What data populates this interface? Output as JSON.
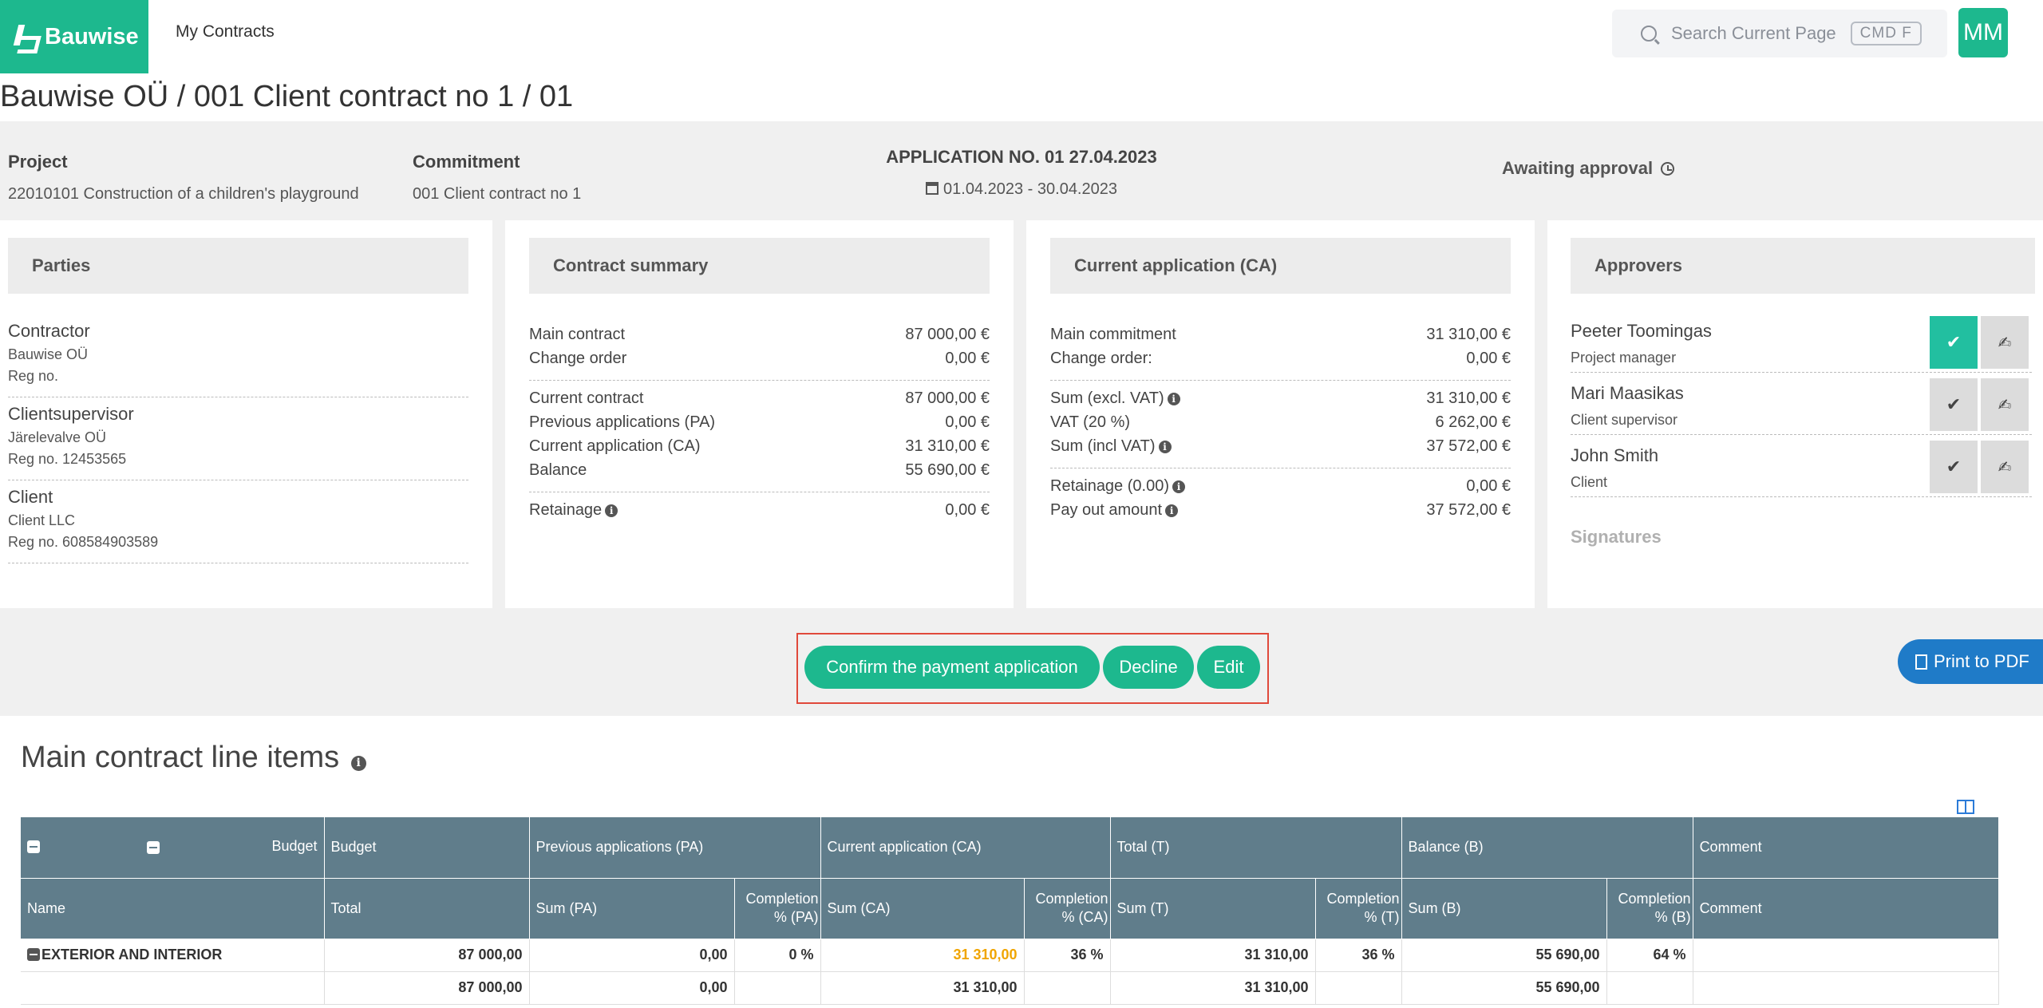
{
  "header": {
    "brand": "Bauwise",
    "nav_my_contracts": "My Contracts",
    "search_placeholder": "Search Current Page",
    "search_shortcut": "CMD F",
    "avatar_initials": "MM"
  },
  "page_title": "Bauwise OÜ / 001 Client contract no 1 / 01",
  "info": {
    "project_label": "Project",
    "project_value": "22010101 Construction of a children's playground",
    "commitment_label": "Commitment",
    "commitment_value": "001 Client contract no 1",
    "application_title": "APPLICATION NO. 01 27.04.2023",
    "application_dates": "01.04.2023 - 30.04.2023",
    "status": "Awaiting approval"
  },
  "parties": {
    "title": "Parties",
    "items": [
      {
        "role": "Contractor",
        "name": "Bauwise OÜ",
        "reg": "Reg no."
      },
      {
        "role": "Clientsupervisor",
        "name": "Järelevalve OÜ",
        "reg": "Reg no. 12453565"
      },
      {
        "role": "Client",
        "name": "Client LLC",
        "reg": "Reg no. 608584903589"
      }
    ]
  },
  "contract_summary": {
    "title": "Contract summary",
    "rows": [
      {
        "label": "Main contract",
        "value": "87 000,00 €"
      },
      {
        "label": "Change order",
        "value": "0,00 €"
      },
      {
        "label": "Current contract",
        "value": "87 000,00 €"
      },
      {
        "label": "Previous applications (PA)",
        "value": "0,00 €"
      },
      {
        "label": "Current application (CA)",
        "value": "31 310,00 €"
      },
      {
        "label": "Balance",
        "value": "55 690,00 €"
      },
      {
        "label": "Retainage",
        "value": "0,00 €"
      }
    ]
  },
  "current_application": {
    "title": "Current application (CA)",
    "rows": [
      {
        "label": "Main commitment",
        "value": "31 310,00 €"
      },
      {
        "label": "Change order:",
        "value": "0,00 €"
      },
      {
        "label": "Sum (excl. VAT)",
        "value": "31 310,00 €"
      },
      {
        "label": "VAT (20 %)",
        "value": "6 262,00 €"
      },
      {
        "label": "Sum (incl VAT)",
        "value": "37 572,00 €"
      },
      {
        "label": "Retainage (0.00)",
        "value": "0,00 €"
      },
      {
        "label": "Pay out amount",
        "value": "37 572,00 €"
      }
    ]
  },
  "approvers": {
    "title": "Approvers",
    "items": [
      {
        "name": "Peeter Toomingas",
        "role": "Project manager"
      },
      {
        "name": "Mari Maasikas",
        "role": "Client supervisor"
      },
      {
        "name": "John Smith",
        "role": "Client"
      }
    ],
    "signatures_label": "Signatures"
  },
  "actions": {
    "confirm": "Confirm the payment application",
    "decline": "Decline",
    "edit": "Edit",
    "print": "Print to PDF"
  },
  "line_items": {
    "title": "Main contract line items",
    "group_headers": {
      "budget_a": "Budget",
      "budget_b": "Budget",
      "pa": "Previous applications (PA)",
      "ca": "Current application (CA)",
      "total": "Total (T)",
      "balance": "Balance (B)",
      "comment": "Comment"
    },
    "columns": {
      "name": "Name",
      "total": "Total",
      "sum_pa": "Sum (PA)",
      "comp_pa_1": "Completion",
      "comp_pa_2": "% (PA)",
      "sum_ca": "Sum (CA)",
      "comp_ca_1": "Completion",
      "comp_ca_2": "% (CA)",
      "sum_t": "Sum (T)",
      "comp_t_1": "Completion",
      "comp_t_2": "% (T)",
      "sum_b": "Sum (B)",
      "comp_b_1": "Completion",
      "comp_b_2": "% (B)",
      "comment": "Comment"
    },
    "rows": [
      {
        "name": "EXTERIOR AND INTERIOR",
        "total": "87 000,00",
        "sum_pa": "0,00",
        "comp_pa": "0 %",
        "sum_ca": "31 310,00",
        "comp_ca": "36 %",
        "sum_t": "31 310,00",
        "comp_t": "36 %",
        "sum_b": "55 690,00",
        "comp_b": "64 %",
        "comment": ""
      },
      {
        "name": "",
        "total": "87 000,00",
        "sum_pa": "0,00",
        "comp_pa": "",
        "sum_ca": "31 310,00",
        "comp_ca": "",
        "sum_t": "31 310,00",
        "comp_t": "",
        "sum_b": "55 690,00",
        "comp_b": "",
        "comment": ""
      }
    ]
  },
  "colors": {
    "brand_green": "#1db88e",
    "header_slate": "#607d8b",
    "print_blue": "#1f7bc8",
    "highlight_red": "#e0493b"
  }
}
